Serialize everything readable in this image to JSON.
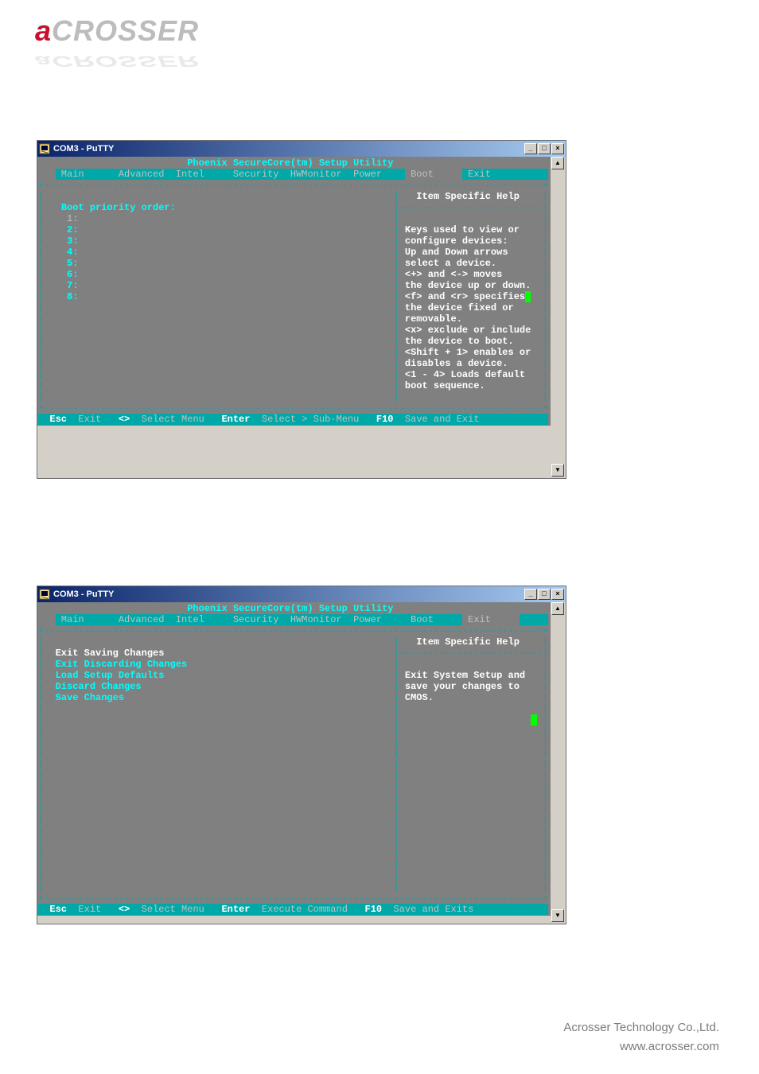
{
  "logo": {
    "a": "a",
    "rest": "CROSSER"
  },
  "window_title": "COM3 - PuTTY",
  "bios_title": "Phoenix SecureCore(tm) Setup Utility",
  "menu_tabs": [
    "Main",
    "Advanced",
    "Intel",
    "Security",
    "HWMonitor",
    "Power",
    "Boot",
    "Exit"
  ],
  "screen1": {
    "active_tab": "Boot",
    "left_title": "Boot priority order:",
    "items": [
      "1:",
      "2:",
      "3:",
      "4:",
      "5:",
      "6:",
      "7:",
      "8:"
    ],
    "help_title": "Item Specific Help",
    "help_lines": [
      "",
      "Keys used to view or",
      "configure devices:",
      "Up and Down arrows",
      "select a device.",
      "<+> and <-> moves",
      "the device up or down.",
      "<f> and <r> specifies",
      "the device fixed or",
      "removable.",
      "<x> exclude or include",
      "the device to boot.",
      "<Shift + 1> enables or",
      "disables a device.",
      "<1 - 4> Loads default",
      "boot sequence."
    ],
    "footer_keys": [
      {
        "k": "Esc",
        "l": "Exit"
      },
      {
        "k": "<>",
        "l": "Select Menu"
      },
      {
        "k": "Enter",
        "l": "Select > Sub-Menu"
      },
      {
        "k": "F10",
        "l": "Save and Exit"
      }
    ]
  },
  "screen2": {
    "active_tab": "Exit",
    "menu_items": [
      "Exit Saving Changes",
      "Exit Discarding Changes",
      "Load Setup Defaults",
      "Discard Changes",
      "Save Changes"
    ],
    "help_title": "Item Specific Help",
    "help_lines": [
      "",
      "Exit System Setup and",
      "save your changes to",
      "CMOS."
    ],
    "footer_keys": [
      {
        "k": "Esc",
        "l": "Exit"
      },
      {
        "k": "<>",
        "l": "Select Menu"
      },
      {
        "k": "Enter",
        "l": "Execute Command"
      },
      {
        "k": "F10",
        "l": "Save and Exits"
      }
    ]
  },
  "footer_company": "Acrosser Technology Co.,Ltd.",
  "footer_url": "www.acrosser.com",
  "colors": {
    "teal": "#00a8a8",
    "bright_cyan": "#00ffff",
    "grey_bg": "#808080",
    "light_grey": "#c0c0c0",
    "white": "#ffffff",
    "cursor": "#00ff00",
    "win98_face": "#d4d0c8",
    "titlebar_left": "#0a246a",
    "titlebar_right": "#a6caf0",
    "logo_red": "#c8102e",
    "logo_grey": "#bcbcbc"
  }
}
